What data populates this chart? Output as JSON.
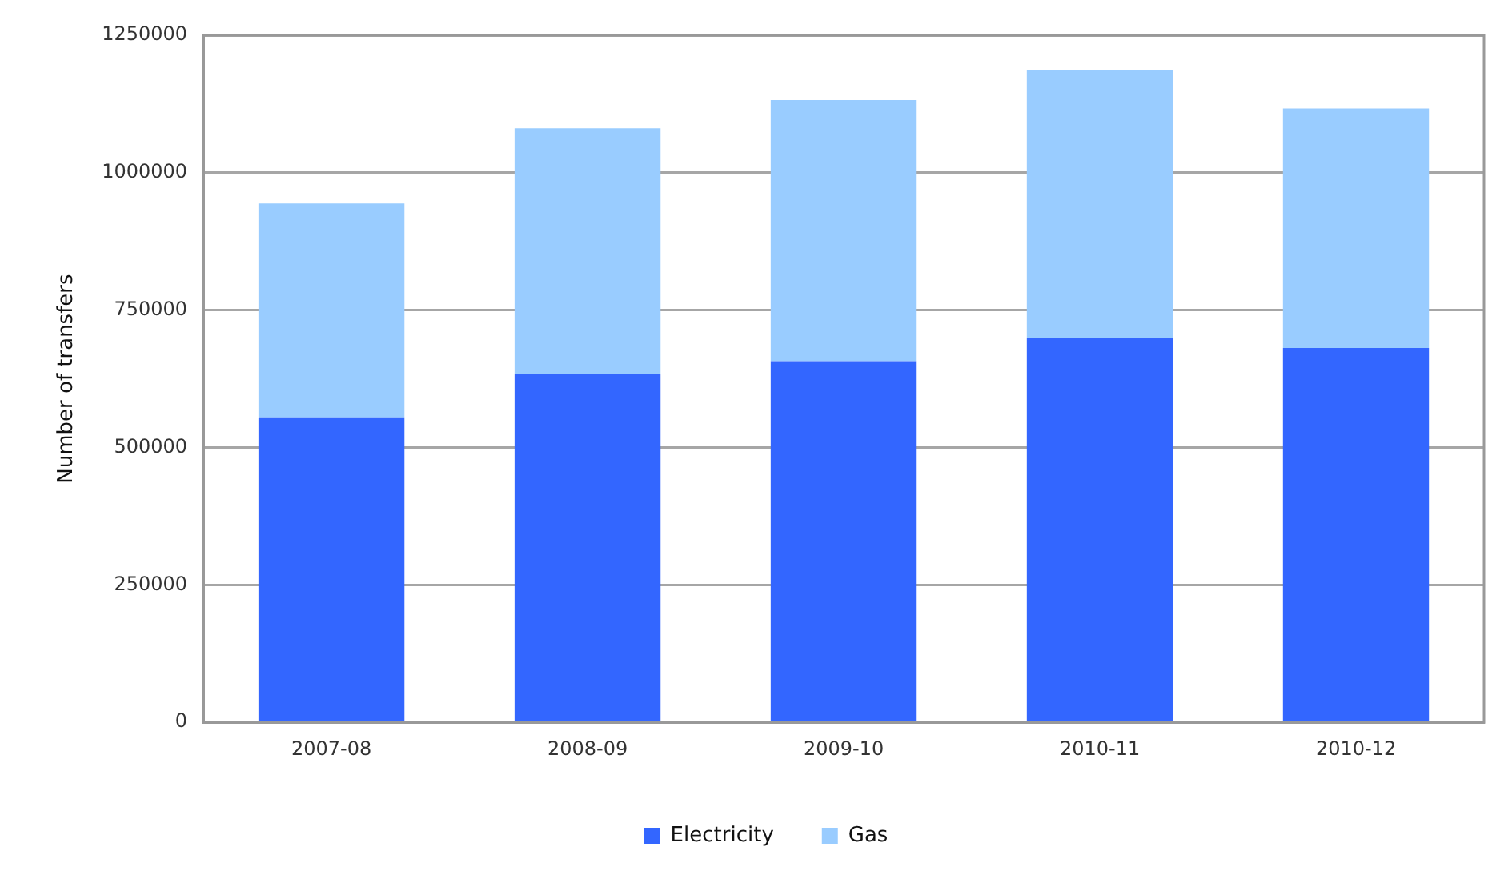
{
  "chart_data": {
    "type": "bar",
    "ylabel": "Number of transfers",
    "categories": [
      "2007-08",
      "2008-09",
      "2009-10",
      "2010-11",
      "2010-12"
    ],
    "series": [
      {
        "name": "Electricity",
        "color": "#3366ff",
        "values": [
          555000,
          633000,
          657000,
          699000,
          681000
        ]
      },
      {
        "name": "Gas",
        "color": "#99ccff",
        "values": [
          389000,
          448000,
          475000,
          487000,
          436000
        ]
      }
    ],
    "stacked": true,
    "ylim": [
      0,
      1250000
    ],
    "yticks": [
      0,
      250000,
      500000,
      750000,
      1000000,
      1250000
    ],
    "grid": "y",
    "legend": "bottom"
  }
}
